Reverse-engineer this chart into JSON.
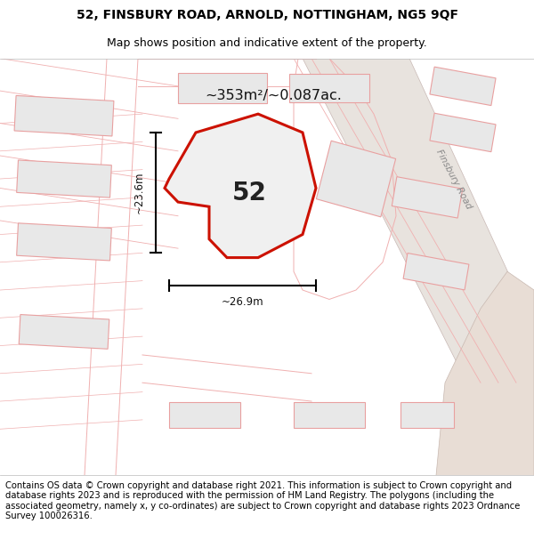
{
  "title_line1": "52, FINSBURY ROAD, ARNOLD, NOTTINGHAM, NG5 9QF",
  "title_line2": "Map shows position and indicative extent of the property.",
  "area_text": "~353m²/~0.087ac.",
  "plot_number": "52",
  "dim_vertical": "~23.6m",
  "dim_horizontal": "~26.9m",
  "road_label": "Finsbury Road",
  "footer_text": "Contains OS data © Crown copyright and database right 2021. This information is subject to Crown copyright and database rights 2023 and is reproduced with the permission of HM Land Registry. The polygons (including the associated geometry, namely x, y co-ordinates) are subject to Crown copyright and database rights 2023 Ordnance Survey 100026316.",
  "map_bg": "#ffffff",
  "building_fill": "#e8e8e8",
  "building_edge": "#e8a0a0",
  "road_fill": "#e8e0da",
  "road_edge": "#d0c0bc",
  "plot_fill": "#f0f0f0",
  "plot_edge": "#cc1100",
  "road_line_color": "#e8a0a0",
  "title_fontsize": 10,
  "subtitle_fontsize": 9,
  "footer_fontsize": 7.2
}
